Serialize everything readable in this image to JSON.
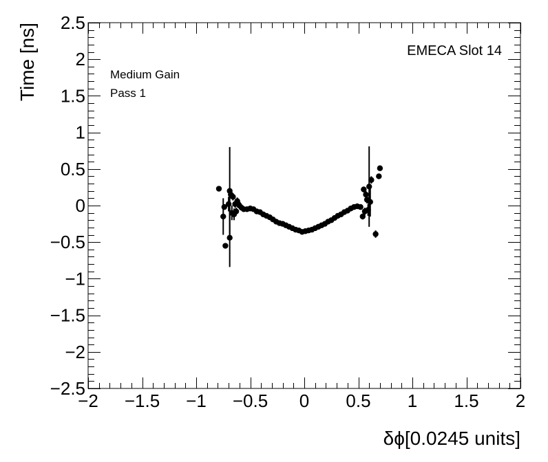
{
  "chart_data": {
    "type": "scatter",
    "xlabel": "δϕ[0.0245 units]",
    "ylabel": "Time [ns]",
    "xlim": [
      -2,
      2
    ],
    "ylim": [
      -2.5,
      2.5
    ],
    "x_ticks": [
      "−2",
      "−1.5",
      "−1",
      "−0.5",
      "0",
      "0.5",
      "1",
      "1.5",
      "2"
    ],
    "y_ticks": [
      "2.5",
      "2",
      "1.5",
      "1",
      "0.5",
      "0",
      "−0.5",
      "−1",
      "−1.5",
      "−2",
      "−2.5"
    ],
    "annotations": {
      "slot": "EMECA Slot 14",
      "gain": "Medium Gain",
      "pass": "Pass 1"
    },
    "grid": false,
    "points": [
      {
        "x": -0.79,
        "y": 0.23,
        "err": 0.02
      },
      {
        "x": -0.74,
        "y": -0.02,
        "err": 0.02
      },
      {
        "x": -0.73,
        "y": -0.55,
        "err": 0.02
      },
      {
        "x": -0.75,
        "y": -0.15,
        "err": 0.25
      },
      {
        "x": -0.7,
        "y": 0.02,
        "err": 0.1
      },
      {
        "x": -0.69,
        "y": -0.44,
        "err": 0.4
      },
      {
        "x": -0.69,
        "y": 0.2,
        "err": 0.6
      },
      {
        "x": -0.68,
        "y": 0.15,
        "err": 0.05
      },
      {
        "x": -0.67,
        "y": -0.1,
        "err": 0.1
      },
      {
        "x": -0.66,
        "y": 0.12,
        "err": 0.05
      },
      {
        "x": -0.65,
        "y": -0.12,
        "err": 0.08
      },
      {
        "x": -0.64,
        "y": 0.02,
        "err": 0.05
      },
      {
        "x": -0.63,
        "y": -0.08,
        "err": 0.05
      },
      {
        "x": -0.62,
        "y": 0.06,
        "err": 0.05
      },
      {
        "x": -0.61,
        "y": 0.02,
        "err": 0.05
      },
      {
        "x": -0.6,
        "y": 0.0,
        "err": 0.03
      },
      {
        "x": -0.58,
        "y": -0.03,
        "err": 0.03
      },
      {
        "x": -0.56,
        "y": -0.05,
        "err": 0.02
      },
      {
        "x": -0.53,
        "y": -0.05,
        "err": 0.02
      },
      {
        "x": -0.5,
        "y": -0.04,
        "err": 0.02
      },
      {
        "x": -0.47,
        "y": -0.05,
        "err": 0.02
      },
      {
        "x": -0.44,
        "y": -0.08,
        "err": 0.02
      },
      {
        "x": -0.41,
        "y": -0.09,
        "err": 0.02
      },
      {
        "x": -0.38,
        "y": -0.12,
        "err": 0.02
      },
      {
        "x": -0.35,
        "y": -0.14,
        "err": 0.02
      },
      {
        "x": -0.32,
        "y": -0.16,
        "err": 0.02
      },
      {
        "x": -0.29,
        "y": -0.19,
        "err": 0.02
      },
      {
        "x": -0.26,
        "y": -0.22,
        "err": 0.02
      },
      {
        "x": -0.23,
        "y": -0.24,
        "err": 0.02
      },
      {
        "x": -0.2,
        "y": -0.25,
        "err": 0.02
      },
      {
        "x": -0.17,
        "y": -0.27,
        "err": 0.02
      },
      {
        "x": -0.14,
        "y": -0.29,
        "err": 0.02
      },
      {
        "x": -0.11,
        "y": -0.31,
        "err": 0.02
      },
      {
        "x": -0.08,
        "y": -0.33,
        "err": 0.02
      },
      {
        "x": -0.05,
        "y": -0.34,
        "err": 0.02
      },
      {
        "x": -0.02,
        "y": -0.36,
        "err": 0.02
      },
      {
        "x": 0.01,
        "y": -0.35,
        "err": 0.02
      },
      {
        "x": 0.04,
        "y": -0.34,
        "err": 0.02
      },
      {
        "x": 0.07,
        "y": -0.33,
        "err": 0.02
      },
      {
        "x": 0.1,
        "y": -0.31,
        "err": 0.02
      },
      {
        "x": 0.13,
        "y": -0.29,
        "err": 0.02
      },
      {
        "x": 0.16,
        "y": -0.27,
        "err": 0.02
      },
      {
        "x": 0.19,
        "y": -0.25,
        "err": 0.02
      },
      {
        "x": 0.22,
        "y": -0.22,
        "err": 0.02
      },
      {
        "x": 0.25,
        "y": -0.2,
        "err": 0.02
      },
      {
        "x": 0.28,
        "y": -0.17,
        "err": 0.02
      },
      {
        "x": 0.31,
        "y": -0.14,
        "err": 0.02
      },
      {
        "x": 0.34,
        "y": -0.12,
        "err": 0.02
      },
      {
        "x": 0.37,
        "y": -0.09,
        "err": 0.02
      },
      {
        "x": 0.4,
        "y": -0.07,
        "err": 0.02
      },
      {
        "x": 0.43,
        "y": -0.04,
        "err": 0.02
      },
      {
        "x": 0.46,
        "y": -0.02,
        "err": 0.02
      },
      {
        "x": 0.49,
        "y": -0.01,
        "err": 0.02
      },
      {
        "x": 0.52,
        "y": -0.02,
        "err": 0.03
      },
      {
        "x": 0.54,
        "y": -0.15,
        "err": 0.04
      },
      {
        "x": 0.55,
        "y": 0.22,
        "err": 0.04
      },
      {
        "x": 0.56,
        "y": -0.08,
        "err": 0.05
      },
      {
        "x": 0.57,
        "y": 0.15,
        "err": 0.05
      },
      {
        "x": 0.58,
        "y": 0.08,
        "err": 0.05
      },
      {
        "x": 0.59,
        "y": -0.06,
        "err": 0.08
      },
      {
        "x": 0.6,
        "y": 0.26,
        "err": 0.55
      },
      {
        "x": 0.61,
        "y": 0.05,
        "err": 0.2
      },
      {
        "x": 0.62,
        "y": 0.35,
        "err": 0.05
      },
      {
        "x": 0.66,
        "y": -0.39,
        "err": 0.05
      },
      {
        "x": 0.69,
        "y": 0.4,
        "err": 0.02
      },
      {
        "x": 0.7,
        "y": 0.51,
        "err": 0.02
      }
    ]
  }
}
